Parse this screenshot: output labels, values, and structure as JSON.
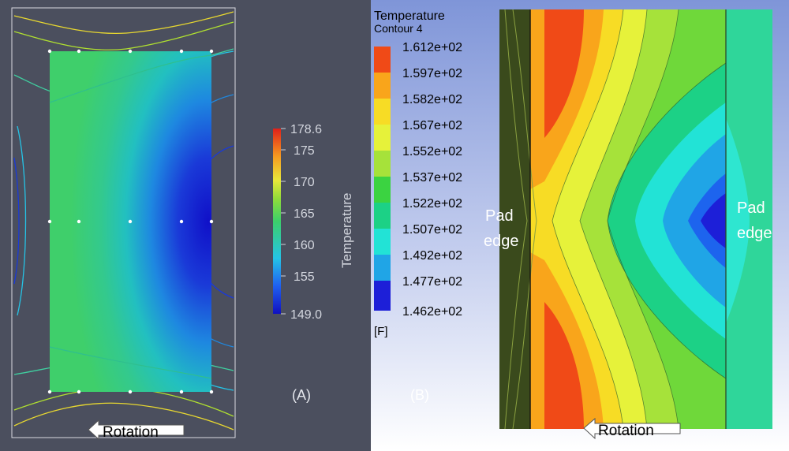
{
  "panel_a": {
    "label": "(A)",
    "colorbar": {
      "title": "Temperature",
      "ticks": [
        "178.6",
        "175",
        "170",
        "165",
        "160",
        "155",
        "149.0"
      ]
    },
    "arrow_text": "Rotation"
  },
  "panel_b": {
    "label": "(B)",
    "legend": {
      "title": "Temperature",
      "subtitle": "Contour 4",
      "unit": "[F]",
      "levels": [
        "1.612e+02",
        "1.597e+02",
        "1.582e+02",
        "1.567e+02",
        "1.552e+02",
        "1.537e+02",
        "1.522e+02",
        "1.507e+02",
        "1.492e+02",
        "1.477e+02",
        "1.462e+02"
      ],
      "colors": [
        "#f04a17",
        "#f9a51b",
        "#f7dc25",
        "#e6f23a",
        "#a6e23a",
        "#3bd341",
        "#1cd186",
        "#22e3d6",
        "#20a5e6",
        "#1d64ee",
        "#1d1fd8"
      ]
    },
    "left_edge_label": [
      "Pad",
      "edge"
    ],
    "right_edge_label": [
      "Pad",
      "edge"
    ],
    "arrow_text": "Rotation"
  },
  "colors": {
    "panel_a_bg": "#4b4f5e",
    "panel_b_bg_top": "#7f95d8",
    "panel_b_bg_bottom": "#ffffff"
  }
}
